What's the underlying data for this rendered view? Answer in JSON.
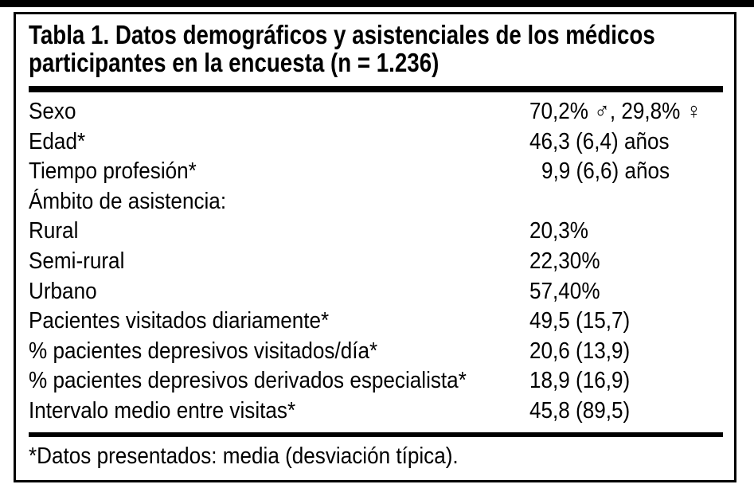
{
  "figure": {
    "title_lines": [
      "Tabla 1. Datos demográficos y asistenciales de los médicos",
      "participantes en la encuesta (n = 1.236)"
    ],
    "rows": [
      {
        "label": "Sexo",
        "value": "70,2% ♂, 29,8% ♀"
      },
      {
        "label": "Edad*",
        "value": "46,3 (6,4) años"
      },
      {
        "label": "Tiempo profesión*",
        "value": "9,9 (6,6) años"
      },
      {
        "label": "Ámbito de asistencia:",
        "value": ""
      },
      {
        "label": "Rural",
        "value": "20,3%"
      },
      {
        "label": "Semi-rural",
        "value": "22,30%"
      },
      {
        "label": "Urbano",
        "value": "57,40%"
      },
      {
        "label": "Pacientes visitados diariamente*",
        "value": "49,5 (15,7)"
      },
      {
        "label": "% pacientes depresivos visitados/día*",
        "value": "20,6 (13,9)"
      },
      {
        "label": "% pacientes depresivos derivados especialista*",
        "value": "18,9 (16,9)"
      },
      {
        "label": "Intervalo medio entre visitas*",
        "value": "45,8 (89,5)"
      }
    ],
    "footnote": "*Datos presentados: media (desviación típica).",
    "colors": {
      "ink": "#000000",
      "background": "#ffffff"
    }
  }
}
